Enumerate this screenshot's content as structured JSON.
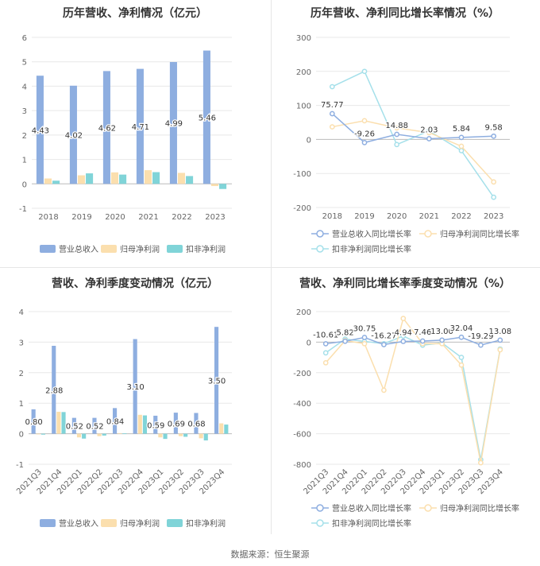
{
  "source_label": "数据来源：恒生聚源",
  "colors": {
    "revenue": "#8eaee0",
    "parent_profit": "#fbdfae",
    "deducted_profit": "#80d4d8",
    "line_revenue": "#8eaee0",
    "line_parent": "#fbdfae",
    "line_deducted": "#a5e0ea"
  },
  "chart_data": [
    {
      "type": "bar",
      "title": "历年营收、净利情况（亿元）",
      "categories": [
        "2018",
        "2019",
        "2020",
        "2021",
        "2022",
        "2023"
      ],
      "ylim": [
        -1,
        6
      ],
      "yticks": [
        -1,
        0,
        1,
        2,
        3,
        4,
        5,
        6
      ],
      "data_label_series": 0,
      "data_labels": [
        "4.43",
        "4.02",
        "4.62",
        "4.71",
        "4.99",
        "5.46"
      ],
      "series": [
        {
          "name": "营业总收入",
          "values": [
            4.43,
            4.02,
            4.62,
            4.71,
            4.99,
            5.46
          ]
        },
        {
          "name": "归母净利润",
          "values": [
            0.22,
            0.35,
            0.47,
            0.56,
            0.45,
            -0.09
          ]
        },
        {
          "name": "扣非净利润",
          "values": [
            0.13,
            0.43,
            0.38,
            0.48,
            0.32,
            -0.21
          ]
        }
      ],
      "legend_position": "bottom"
    },
    {
      "type": "line",
      "title": "历年营收、净利同比增长率情况（%）",
      "categories": [
        "2018",
        "2019",
        "2020",
        "2021",
        "2022",
        "2023"
      ],
      "ylim": [
        -200,
        300
      ],
      "yticks": [
        -200,
        -100,
        0,
        100,
        200,
        300
      ],
      "data_label_series": 0,
      "data_labels": [
        "75.77",
        "-9.26",
        "14.88",
        "2.03",
        "5.84",
        "9.58"
      ],
      "series": [
        {
          "name": "营业总收入同比增长率",
          "values": [
            75.77,
            -9.26,
            14.88,
            2.03,
            5.84,
            9.58
          ]
        },
        {
          "name": "归母净利润同比增长率",
          "values": [
            37,
            55,
            34,
            20,
            -20,
            -125
          ]
        },
        {
          "name": "扣非净利润同比增长率",
          "values": [
            155,
            200,
            -15,
            25,
            -33,
            -170
          ]
        }
      ],
      "legend_position": "bottom"
    },
    {
      "type": "bar",
      "title": "营收、净利季度变动情况（亿元）",
      "categories": [
        "2021Q3",
        "2021Q4",
        "2022Q1",
        "2022Q2",
        "2022Q3",
        "2022Q4",
        "2023Q1",
        "2023Q2",
        "2023Q3",
        "2023Q4"
      ],
      "ylim": [
        -1,
        4
      ],
      "yticks": [
        -1,
        0,
        1,
        2,
        3,
        4
      ],
      "data_label_series": 0,
      "data_labels": [
        "0.80",
        "2.88",
        "0.52",
        "0.52",
        "0.84",
        "3.10",
        "0.59",
        "0.69",
        "0.68",
        "3.50"
      ],
      "series": [
        {
          "name": "营业总收入",
          "values": [
            0.8,
            2.88,
            0.52,
            0.52,
            0.84,
            3.1,
            0.59,
            0.69,
            0.68,
            3.5
          ]
        },
        {
          "name": "归母净利润",
          "values": [
            -0.02,
            0.72,
            -0.12,
            -0.08,
            0.02,
            0.62,
            -0.12,
            -0.08,
            -0.15,
            0.34
          ]
        },
        {
          "name": "扣非净利润",
          "values": [
            -0.03,
            0.71,
            -0.16,
            -0.06,
            0.01,
            0.6,
            -0.17,
            -0.1,
            -0.22,
            0.3
          ]
        }
      ],
      "legend_position": "bottom"
    },
    {
      "type": "line",
      "title": "营收、净利同比增长率季度变动情况（%）",
      "categories": [
        "2021Q3",
        "2021Q4",
        "2022Q1",
        "2022Q2",
        "2022Q3",
        "2022Q4",
        "2023Q1",
        "2023Q2",
        "2023Q3",
        "2023Q4"
      ],
      "ylim": [
        -800,
        200
      ],
      "yticks": [
        -800,
        -600,
        -400,
        -200,
        0,
        200
      ],
      "data_label_series": 0,
      "data_labels": [
        "-10.61",
        "5.82",
        "30.75",
        "-16.27",
        "4.94",
        "7.46",
        "13.00",
        "32.04",
        "-19.29",
        "13.08"
      ],
      "series": [
        {
          "name": "营业总收入同比增长率",
          "values": [
            -10.61,
            5.82,
            30.75,
            -16.27,
            4.94,
            7.46,
            13.0,
            32.04,
            -19.29,
            13.08
          ]
        },
        {
          "name": "归母净利润同比增长率",
          "values": [
            -135,
            10,
            -10,
            -315,
            155,
            -10,
            -10,
            -150,
            -790,
            -50
          ]
        },
        {
          "name": "扣非净利润同比增长率",
          "values": [
            -70,
            20,
            5,
            -10,
            40,
            -20,
            -5,
            -100,
            -770,
            -45
          ]
        }
      ],
      "legend_position": "bottom"
    }
  ]
}
